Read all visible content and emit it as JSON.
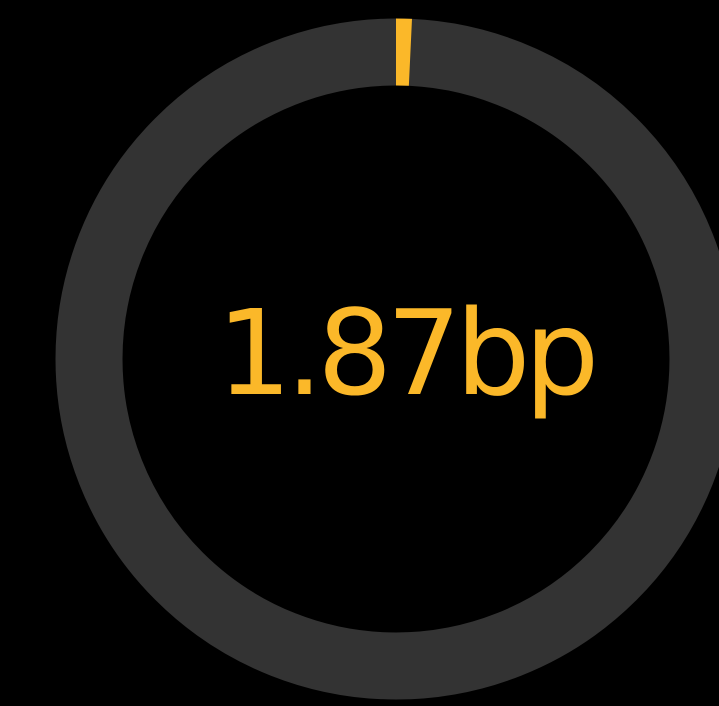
{
  "chart_data": {
    "type": "gauge",
    "values": [
      1.87
    ],
    "value_labels": [
      "1.87bp"
    ],
    "ylim": [
      0,
      250
    ],
    "color": "#fbb829",
    "track_color": "#333333"
  }
}
